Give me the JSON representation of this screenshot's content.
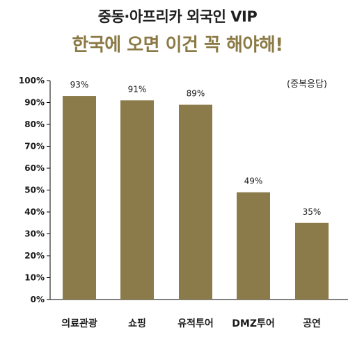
{
  "header": {
    "title": "중동·아프리카 외국인 VIP",
    "subtitle": "한국에 오면 이건 꼭 해야해!"
  },
  "note": "(중복응답)",
  "colors": {
    "bar": "#8c7b4a",
    "title_accent": "#8b7a45",
    "axis": "#000000"
  },
  "chart_data": {
    "type": "bar",
    "title": "중동·아프리카 외국인 VIP",
    "subtitle": "한국에 오면 이건 꼭 해야해!",
    "categories": [
      "의료관광",
      "쇼핑",
      "유적투어",
      "DMZ투어",
      "공연"
    ],
    "values": [
      93,
      91,
      89,
      49,
      35
    ],
    "value_labels": [
      "93%",
      "91%",
      "89%",
      "49%",
      "35%"
    ],
    "ylim": [
      0,
      100
    ],
    "yticks": [
      "0%",
      "10%",
      "20%",
      "30%",
      "40%",
      "50%",
      "60%",
      "70%",
      "80%",
      "90%",
      "100%"
    ],
    "xlabel": "",
    "ylabel": "",
    "grid": false,
    "legend": "none"
  }
}
